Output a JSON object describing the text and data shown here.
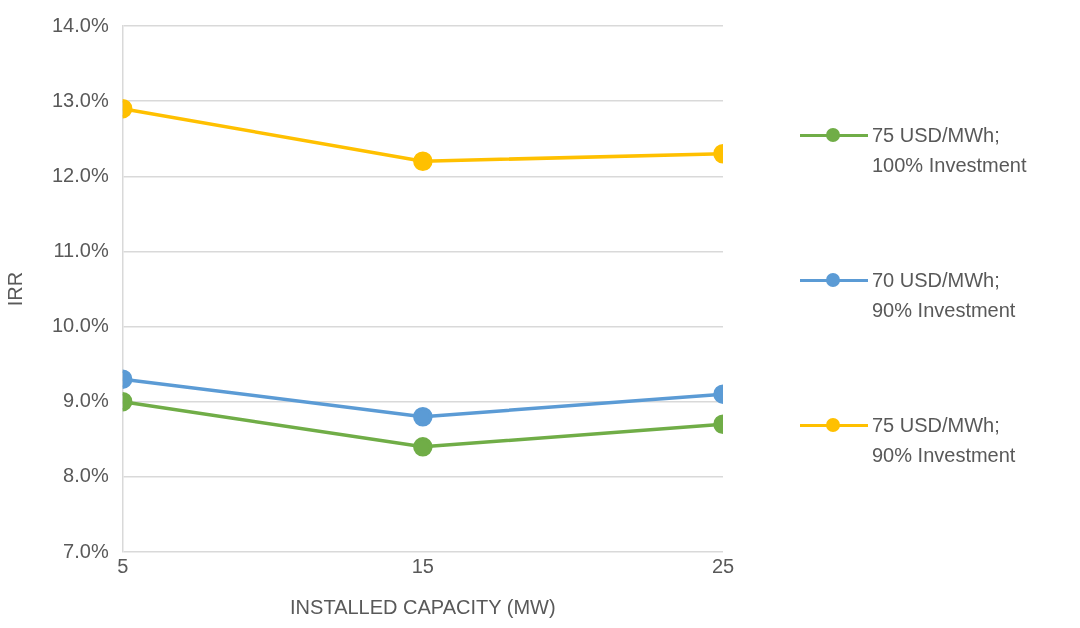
{
  "chart_data": {
    "type": "line",
    "xlabel": "INSTALLED CAPACITY (MW)",
    "ylabel": "IRR",
    "x": [
      5,
      15,
      25
    ],
    "xlim": [
      5,
      25
    ],
    "xticks": [
      5,
      15,
      25
    ],
    "ylim": [
      7,
      14
    ],
    "yticks": [
      {
        "value": 7,
        "label": "7.0%"
      },
      {
        "value": 8,
        "label": "8.0%"
      },
      {
        "value": 9,
        "label": "9.0%"
      },
      {
        "value": 10,
        "label": "10.0%"
      },
      {
        "value": 11,
        "label": "11.0%"
      },
      {
        "value": 12,
        "label": "12.0%"
      },
      {
        "value": 13,
        "label": "13.0%"
      },
      {
        "value": 14,
        "label": "14.0%"
      }
    ],
    "grid": "y",
    "legend": "right",
    "marker": "circle",
    "line_style": "solid",
    "series": [
      {
        "name": "75 USD/MWh; 100% Investment",
        "color": "#70ad47",
        "values": [
          9.0,
          8.4,
          8.7
        ]
      },
      {
        "name": "70 USD/MWh; 90% Investment",
        "color": "#5b9bd5",
        "values": [
          9.3,
          8.8,
          9.1
        ]
      },
      {
        "name": "75 USD/MWh; 90% Investment",
        "color": "#ffc000",
        "values": [
          12.9,
          12.2,
          12.3
        ]
      }
    ]
  }
}
